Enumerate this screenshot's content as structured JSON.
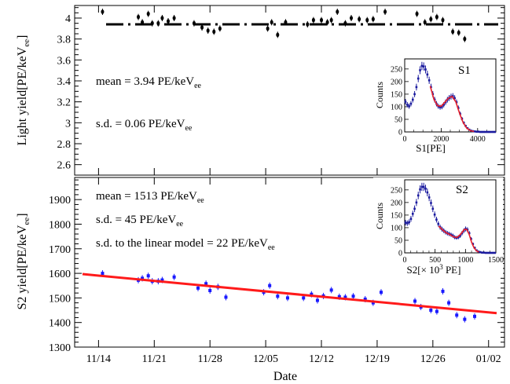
{
  "chart_data": [
    {
      "panel": "top",
      "type": "scatter",
      "ylabel_main": "Light yield[PE/keV",
      "ylabel_sub": "ee",
      "ylabel_tail": "]",
      "ylim": [
        2.5,
        4.12
      ],
      "yticks": [
        2.6,
        2.8,
        3,
        3.2,
        3.4,
        3.6,
        3.8,
        4
      ],
      "ytick_labels": [
        "2.6",
        "2.8",
        "3",
        "3.2",
        "3.4",
        "3.6",
        "3.8",
        "4"
      ],
      "mean_line": 3.94,
      "annotations": [
        {
          "name": "mean-label",
          "main": "mean = 3.94 PE/keV",
          "sub": "ee"
        },
        {
          "name": "sd-label",
          "main": "s.d. = 0.06 PE/keV",
          "sub": "ee"
        }
      ],
      "points": [
        {
          "x": "2016-11-14 12:00",
          "y": 4.06
        },
        {
          "x": "2016-11-19 00:00",
          "y": 4.01
        },
        {
          "x": "2016-11-19 12:00",
          "y": 3.96
        },
        {
          "x": "2016-11-20 06:00",
          "y": 4.04
        },
        {
          "x": "2016-11-20 18:00",
          "y": 3.95
        },
        {
          "x": "2016-11-21 12:00",
          "y": 3.95
        },
        {
          "x": "2016-11-22 00:00",
          "y": 4.0
        },
        {
          "x": "2016-11-22 18:00",
          "y": 3.97
        },
        {
          "x": "2016-11-23 12:00",
          "y": 4.0
        },
        {
          "x": "2016-11-26 00:00",
          "y": 3.95
        },
        {
          "x": "2016-11-27 00:00",
          "y": 3.91
        },
        {
          "x": "2016-11-27 18:00",
          "y": 3.88
        },
        {
          "x": "2016-11-28 12:00",
          "y": 3.87
        },
        {
          "x": "2016-11-29 06:00",
          "y": 3.9
        },
        {
          "x": "2016-12-05 06:00",
          "y": 3.9
        },
        {
          "x": "2016-12-05 18:00",
          "y": 3.96
        },
        {
          "x": "2016-12-06 12:00",
          "y": 3.84
        },
        {
          "x": "2016-12-07 12:00",
          "y": 3.96
        },
        {
          "x": "2016-12-10 06:00",
          "y": 3.94
        },
        {
          "x": "2016-12-11 00:00",
          "y": 3.98
        },
        {
          "x": "2016-12-12 00:00",
          "y": 3.98
        },
        {
          "x": "2016-12-12 18:00",
          "y": 3.96
        },
        {
          "x": "2016-12-13 06:00",
          "y": 3.98
        },
        {
          "x": "2016-12-14 00:00",
          "y": 4.06
        },
        {
          "x": "2016-12-15 00:00",
          "y": 3.95
        },
        {
          "x": "2016-12-15 18:00",
          "y": 4.0
        },
        {
          "x": "2016-12-16 18:00",
          "y": 3.99
        },
        {
          "x": "2016-12-17 18:00",
          "y": 3.98
        },
        {
          "x": "2016-12-18 12:00",
          "y": 3.99
        },
        {
          "x": "2016-12-20 00:00",
          "y": 4.06
        },
        {
          "x": "2016-12-24 00:00",
          "y": 4.04
        },
        {
          "x": "2016-12-25 00:00",
          "y": 3.96
        },
        {
          "x": "2016-12-25 18:00",
          "y": 3.99
        },
        {
          "x": "2016-12-26 12:00",
          "y": 4.01
        },
        {
          "x": "2016-12-27 06:00",
          "y": 3.98
        },
        {
          "x": "2016-12-28 12:00",
          "y": 3.87
        },
        {
          "x": "2016-12-29 06:00",
          "y": 3.86
        },
        {
          "x": "2016-12-30 00:00",
          "y": 3.8
        }
      ]
    },
    {
      "panel": "bottom",
      "type": "scatter",
      "xlabel": "Date",
      "ylabel_main": "S2 yield[PE/keV",
      "ylabel_sub": "ee",
      "ylabel_tail": "]",
      "ylim": [
        1300,
        1990
      ],
      "yticks": [
        1300,
        1400,
        1500,
        1600,
        1700,
        1800,
        1900
      ],
      "ytick_labels": [
        "1300",
        "1400",
        "1500",
        "1600",
        "1700",
        "1800",
        "1900"
      ],
      "xlim": [
        "2016-11-11",
        "2017-01-04"
      ],
      "xticks": [
        "2016-11-14",
        "2016-11-21",
        "2016-11-28",
        "2016-12-05",
        "2016-12-12",
        "2016-12-19",
        "2016-12-26",
        "2017-01-02"
      ],
      "xtick_labels": [
        "11/14",
        "11/21",
        "11/28",
        "12/05",
        "12/12",
        "12/19",
        "12/26",
        "01/02"
      ],
      "fit_line": {
        "x": [
          "2016-11-11",
          "2017-01-04"
        ],
        "y": [
          1600,
          1435
        ]
      },
      "annotations": [
        {
          "name": "mean-label",
          "main": "mean = 1513 PE/keV",
          "sub": "ee"
        },
        {
          "name": "sd-label",
          "main": "s.d. = 45 PE/keV",
          "sub": "ee"
        },
        {
          "name": "sd-linear-label",
          "main": "s.d. to the linear model = 22 PE/keV",
          "sub": "ee"
        }
      ],
      "points": [
        {
          "x": "2016-11-14 12:00",
          "y": 1600
        },
        {
          "x": "2016-11-19 00:00",
          "y": 1572
        },
        {
          "x": "2016-11-19 12:00",
          "y": 1580
        },
        {
          "x": "2016-11-20 06:00",
          "y": 1590
        },
        {
          "x": "2016-11-20 18:00",
          "y": 1568
        },
        {
          "x": "2016-11-21 12:00",
          "y": 1568
        },
        {
          "x": "2016-11-22 00:00",
          "y": 1573
        },
        {
          "x": "2016-11-23 12:00",
          "y": 1585
        },
        {
          "x": "2016-11-26 12:00",
          "y": 1540
        },
        {
          "x": "2016-11-27 12:00",
          "y": 1558
        },
        {
          "x": "2016-11-28 00:00",
          "y": 1530
        },
        {
          "x": "2016-11-29 00:00",
          "y": 1545
        },
        {
          "x": "2016-11-30 00:00",
          "y": 1503
        },
        {
          "x": "2016-12-04 18:00",
          "y": 1523
        },
        {
          "x": "2016-12-05 12:00",
          "y": 1550
        },
        {
          "x": "2016-12-06 12:00",
          "y": 1507
        },
        {
          "x": "2016-12-07 18:00",
          "y": 1500
        },
        {
          "x": "2016-12-09 18:00",
          "y": 1500
        },
        {
          "x": "2016-12-10 18:00",
          "y": 1515
        },
        {
          "x": "2016-12-11 12:00",
          "y": 1490
        },
        {
          "x": "2016-12-12 06:00",
          "y": 1508
        },
        {
          "x": "2016-12-13 06:00",
          "y": 1532
        },
        {
          "x": "2016-12-14 06:00",
          "y": 1505
        },
        {
          "x": "2016-12-15 00:00",
          "y": 1503
        },
        {
          "x": "2016-12-16 00:00",
          "y": 1507
        },
        {
          "x": "2016-12-17 12:00",
          "y": 1495
        },
        {
          "x": "2016-12-18 12:00",
          "y": 1480
        },
        {
          "x": "2016-12-19 12:00",
          "y": 1523
        },
        {
          "x": "2016-12-23 18:00",
          "y": 1487
        },
        {
          "x": "2016-12-24 12:00",
          "y": 1463
        },
        {
          "x": "2016-12-25 18:00",
          "y": 1450
        },
        {
          "x": "2016-12-26 12:00",
          "y": 1445
        },
        {
          "x": "2016-12-27 06:00",
          "y": 1527
        },
        {
          "x": "2016-12-28 00:00",
          "y": 1480
        },
        {
          "x": "2016-12-29 00:00",
          "y": 1430
        },
        {
          "x": "2016-12-30 00:00",
          "y": 1413
        },
        {
          "x": "2016-12-31 06:00",
          "y": 1425
        }
      ]
    },
    {
      "panel": "inset-s1",
      "type": "histogram",
      "label": "S1",
      "xlabel": "S1[PE]",
      "ylabel": "Counts",
      "xlim": [
        0,
        5000
      ],
      "ylim": [
        0,
        290
      ],
      "xticks": [
        0,
        2000,
        4000
      ],
      "xtick_labels": [
        "0",
        "2000",
        "4000"
      ],
      "yticks": [
        0,
        50,
        100,
        150,
        200,
        250
      ],
      "ytick_labels": [
        "0",
        "50",
        "100",
        "150",
        "200",
        "250"
      ],
      "bins": [
        [
          0,
          120
        ],
        [
          100,
          108
        ],
        [
          200,
          102
        ],
        [
          300,
          112
        ],
        [
          400,
          128
        ],
        [
          500,
          150
        ],
        [
          600,
          178
        ],
        [
          700,
          212
        ],
        [
          800,
          245
        ],
        [
          900,
          262
        ],
        [
          1000,
          260
        ],
        [
          1100,
          248
        ],
        [
          1200,
          228
        ],
        [
          1300,
          205
        ],
        [
          1400,
          178
        ],
        [
          1500,
          150
        ],
        [
          1600,
          128
        ],
        [
          1700,
          112
        ],
        [
          1800,
          102
        ],
        [
          1900,
          98
        ],
        [
          2000,
          100
        ],
        [
          2100,
          108
        ],
        [
          2200,
          118
        ],
        [
          2300,
          128
        ],
        [
          2400,
          135
        ],
        [
          2500,
          140
        ],
        [
          2600,
          142
        ],
        [
          2700,
          134
        ],
        [
          2800,
          118
        ],
        [
          2900,
          95
        ],
        [
          3000,
          72
        ],
        [
          3100,
          52
        ],
        [
          3200,
          36
        ],
        [
          3300,
          24
        ],
        [
          3400,
          15
        ],
        [
          3500,
          9
        ],
        [
          3600,
          5
        ],
        [
          3700,
          3
        ],
        [
          3800,
          2
        ],
        [
          3900,
          1
        ],
        [
          4000,
          1
        ],
        [
          4100,
          0
        ],
        [
          4200,
          0
        ],
        [
          4300,
          0
        ],
        [
          4400,
          0
        ],
        [
          4500,
          0
        ],
        [
          4600,
          0
        ],
        [
          4700,
          0
        ],
        [
          4800,
          0
        ],
        [
          4900,
          0
        ]
      ],
      "fit": [
        [
          1400,
          182
        ],
        [
          1600,
          130
        ],
        [
          1800,
          104
        ],
        [
          2000,
          102
        ],
        [
          2200,
          118
        ],
        [
          2400,
          134
        ],
        [
          2600,
          141
        ],
        [
          2800,
          120
        ],
        [
          3000,
          76
        ],
        [
          3200,
          38
        ],
        [
          3400,
          15
        ],
        [
          3600,
          5
        ],
        [
          3800,
          2
        ]
      ]
    },
    {
      "panel": "inset-s2",
      "type": "histogram",
      "label": "S2",
      "xlabel_main": "S2[× 10",
      "xlabel_sup": "3",
      "xlabel_tail": " PE]",
      "ylabel": "Counts",
      "xlim": [
        0,
        1500
      ],
      "ylim": [
        0,
        290
      ],
      "xticks": [
        0,
        500,
        1000,
        1500
      ],
      "xtick_labels": [
        "0",
        "500",
        "1000",
        "1500"
      ],
      "yticks": [
        0,
        50,
        100,
        150,
        200,
        250
      ],
      "ytick_labels": [
        "0",
        "50",
        "100",
        "150",
        "200",
        "250"
      ],
      "bins": [
        [
          0,
          120
        ],
        [
          30,
          118
        ],
        [
          60,
          122
        ],
        [
          90,
          135
        ],
        [
          120,
          155
        ],
        [
          150,
          175
        ],
        [
          180,
          200
        ],
        [
          210,
          228
        ],
        [
          240,
          252
        ],
        [
          270,
          262
        ],
        [
          300,
          262
        ],
        [
          330,
          255
        ],
        [
          360,
          240
        ],
        [
          390,
          220
        ],
        [
          420,
          198
        ],
        [
          450,
          175
        ],
        [
          480,
          152
        ],
        [
          510,
          132
        ],
        [
          540,
          115
        ],
        [
          570,
          102
        ],
        [
          600,
          94
        ],
        [
          630,
          88
        ],
        [
          660,
          82
        ],
        [
          690,
          78
        ],
        [
          720,
          75
        ],
        [
          750,
          72
        ],
        [
          780,
          68
        ],
        [
          810,
          62
        ],
        [
          840,
          60
        ],
        [
          870,
          62
        ],
        [
          900,
          68
        ],
        [
          930,
          78
        ],
        [
          960,
          88
        ],
        [
          990,
          95
        ],
        [
          1020,
          92
        ],
        [
          1050,
          78
        ],
        [
          1080,
          55
        ],
        [
          1110,
          35
        ],
        [
          1140,
          20
        ],
        [
          1170,
          10
        ],
        [
          1200,
          5
        ],
        [
          1230,
          3
        ],
        [
          1260,
          1
        ],
        [
          1290,
          1
        ],
        [
          1320,
          0
        ],
        [
          1350,
          0
        ],
        [
          1380,
          0
        ],
        [
          1410,
          0
        ],
        [
          1440,
          0
        ],
        [
          1470,
          0
        ]
      ],
      "fit": [
        [
          560,
          106
        ],
        [
          620,
          92
        ],
        [
          680,
          80
        ],
        [
          740,
          73
        ],
        [
          800,
          64
        ],
        [
          860,
          61
        ],
        [
          920,
          74
        ],
        [
          980,
          93
        ],
        [
          1020,
          93
        ],
        [
          1060,
          74
        ],
        [
          1100,
          42
        ],
        [
          1140,
          20
        ],
        [
          1180,
          8
        ],
        [
          1220,
          3
        ]
      ]
    }
  ]
}
